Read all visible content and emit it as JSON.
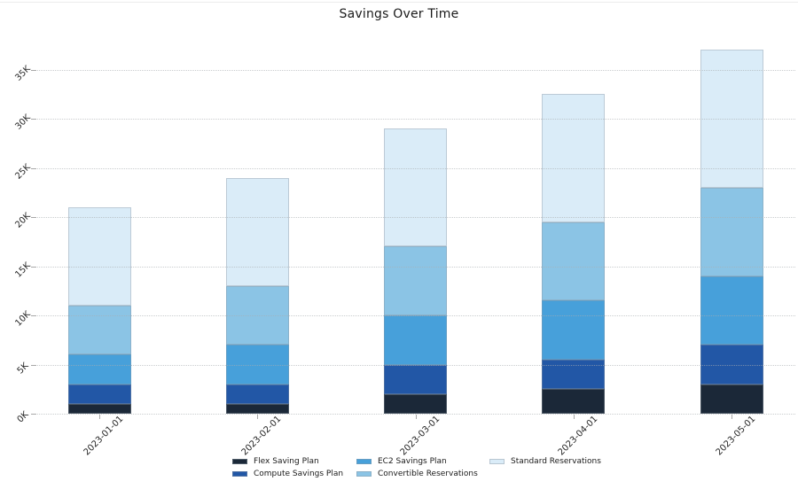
{
  "page": {
    "background": "#ffffff"
  },
  "chart_data": {
    "type": "bar",
    "stacked": true,
    "title": "Savings Over Time",
    "xlabel": "",
    "ylabel": "",
    "categories": [
      "2023-01-01",
      "2023-02-01",
      "2023-03-01",
      "2023-04-01",
      "2023-05-01"
    ],
    "series": [
      {
        "name": "Flex Saving Plan",
        "color": "#1b2838",
        "values": [
          1000,
          1000,
          2000,
          2500,
          3000
        ]
      },
      {
        "name": "Compute Savings Plan",
        "color": "#2257a6",
        "values": [
          2000,
          2000,
          3000,
          3000,
          4000
        ]
      },
      {
        "name": "EC2 Savings Plan",
        "color": "#47a0da",
        "values": [
          3000,
          4000,
          5000,
          6000,
          7000
        ]
      },
      {
        "name": "Convertible Reservations",
        "color": "#8bc4e5",
        "values": [
          5000,
          6000,
          7000,
          8000,
          9000
        ]
      },
      {
        "name": "Standard Reservations",
        "color": "#daecf8",
        "values": [
          10000,
          11000,
          12000,
          13000,
          14000
        ]
      }
    ],
    "ylim": [
      0,
      37500
    ],
    "yticks": [
      0,
      5000,
      10000,
      15000,
      20000,
      25000,
      30000,
      35000
    ],
    "ytick_labels": [
      "0K",
      "5K",
      "10K",
      "15K",
      "20K",
      "25K",
      "30K",
      "35K"
    ],
    "grid": true,
    "grid_style": "dotted",
    "tick_rotation_deg": 45,
    "legend_position": "bottom-center",
    "legend_columns": [
      [
        0,
        1
      ],
      [
        2,
        3
      ],
      [
        4
      ]
    ]
  },
  "styles": {
    "grid_color": "#d2d2d2",
    "tick_color": "#a8a8a8",
    "text_color": "#1a1a1a",
    "axis_text_color": "#262626"
  }
}
